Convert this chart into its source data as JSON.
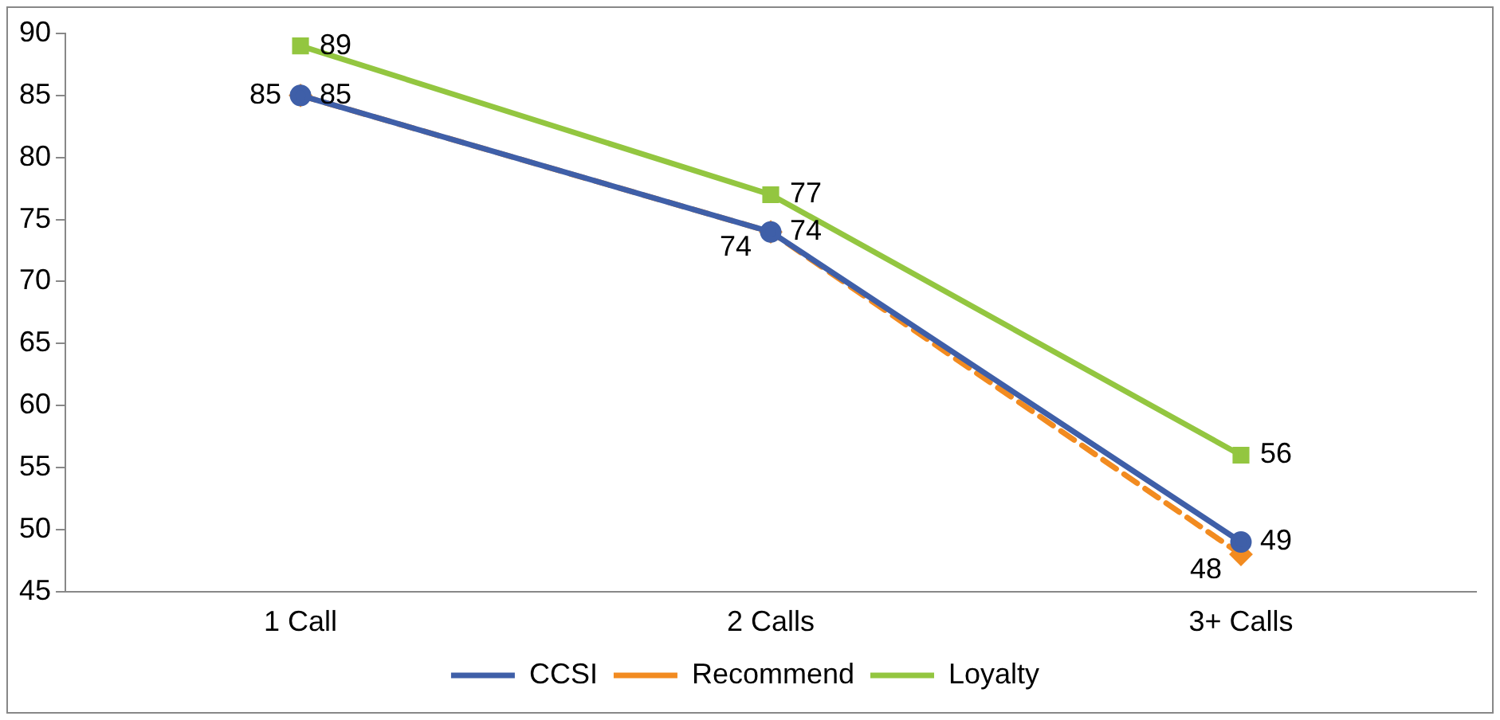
{
  "chart_data": {
    "type": "line",
    "categories": [
      "1 Call",
      "2 Calls",
      "3+ Calls"
    ],
    "series": [
      {
        "name": "CCSI",
        "color": "#3f5fa8",
        "values": [
          85,
          74,
          49
        ],
        "marker": "circle",
        "line_style": "solid"
      },
      {
        "name": "Recommend",
        "color": "#f28b20",
        "values": [
          85,
          74,
          48
        ],
        "marker": "diamond",
        "line_style": "dashed"
      },
      {
        "name": "Loyalty",
        "color": "#93c640",
        "values": [
          89,
          77,
          56
        ],
        "marker": "square",
        "line_style": "solid"
      }
    ],
    "ylim": [
      45,
      90
    ],
    "yticks": [
      45,
      50,
      55,
      60,
      65,
      70,
      75,
      80,
      85,
      90
    ],
    "grid": false,
    "legend": "bottom",
    "data_labels": true
  }
}
